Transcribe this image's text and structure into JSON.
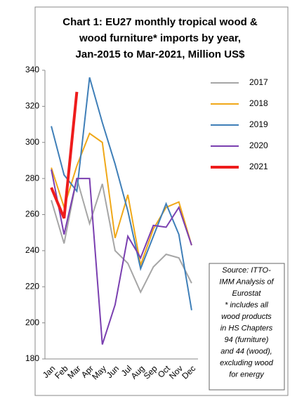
{
  "chart_data": {
    "type": "line",
    "title": [
      "Chart 1: EU27 monthly tropical wood &",
      "wood furniture* imports by year,",
      "Jan-2015 to Mar-2021, Million US$"
    ],
    "categories": [
      "Jan",
      "Feb",
      "Mar",
      "Apr",
      "May",
      "Jun",
      "Jul",
      "Aug",
      "Sep",
      "Oct",
      "Nov",
      "Dec"
    ],
    "series": [
      {
        "name": "2017",
        "color": "#a6a6a6",
        "values": [
          268,
          244,
          280,
          255,
          277,
          240,
          233,
          217,
          231,
          238,
          236,
          222
        ]
      },
      {
        "name": "2018",
        "color": "#f0a818",
        "values": [
          286,
          264,
          287,
          305,
          300,
          247,
          271,
          232,
          252,
          264,
          267,
          243
        ]
      },
      {
        "name": "2019",
        "color": "#3f7fb8",
        "values": [
          309,
          282,
          273,
          336,
          311,
          288,
          262,
          230,
          248,
          266,
          249,
          207
        ]
      },
      {
        "name": "2020",
        "color": "#7a3fb0",
        "values": [
          285,
          249,
          280,
          280,
          188,
          210,
          248,
          236,
          254,
          253,
          264,
          243
        ]
      },
      {
        "name": "2021",
        "color": "#ee1c1c",
        "values": [
          275,
          258,
          328,
          null,
          null,
          null,
          null,
          null,
          null,
          null,
          null,
          null
        ]
      }
    ],
    "ylim": [
      180,
      340
    ],
    "yticks": [
      180,
      200,
      220,
      240,
      260,
      280,
      300,
      320,
      340
    ],
    "grid": false,
    "annotation": [
      "Source: ITTO-",
      "IMM Analysis of",
      "Eurostat",
      "* includes all",
      "wood products",
      "in HS Chapters",
      "94 (furniture)",
      "and 44 (wood),",
      "excluding wood",
      "for energy"
    ]
  }
}
